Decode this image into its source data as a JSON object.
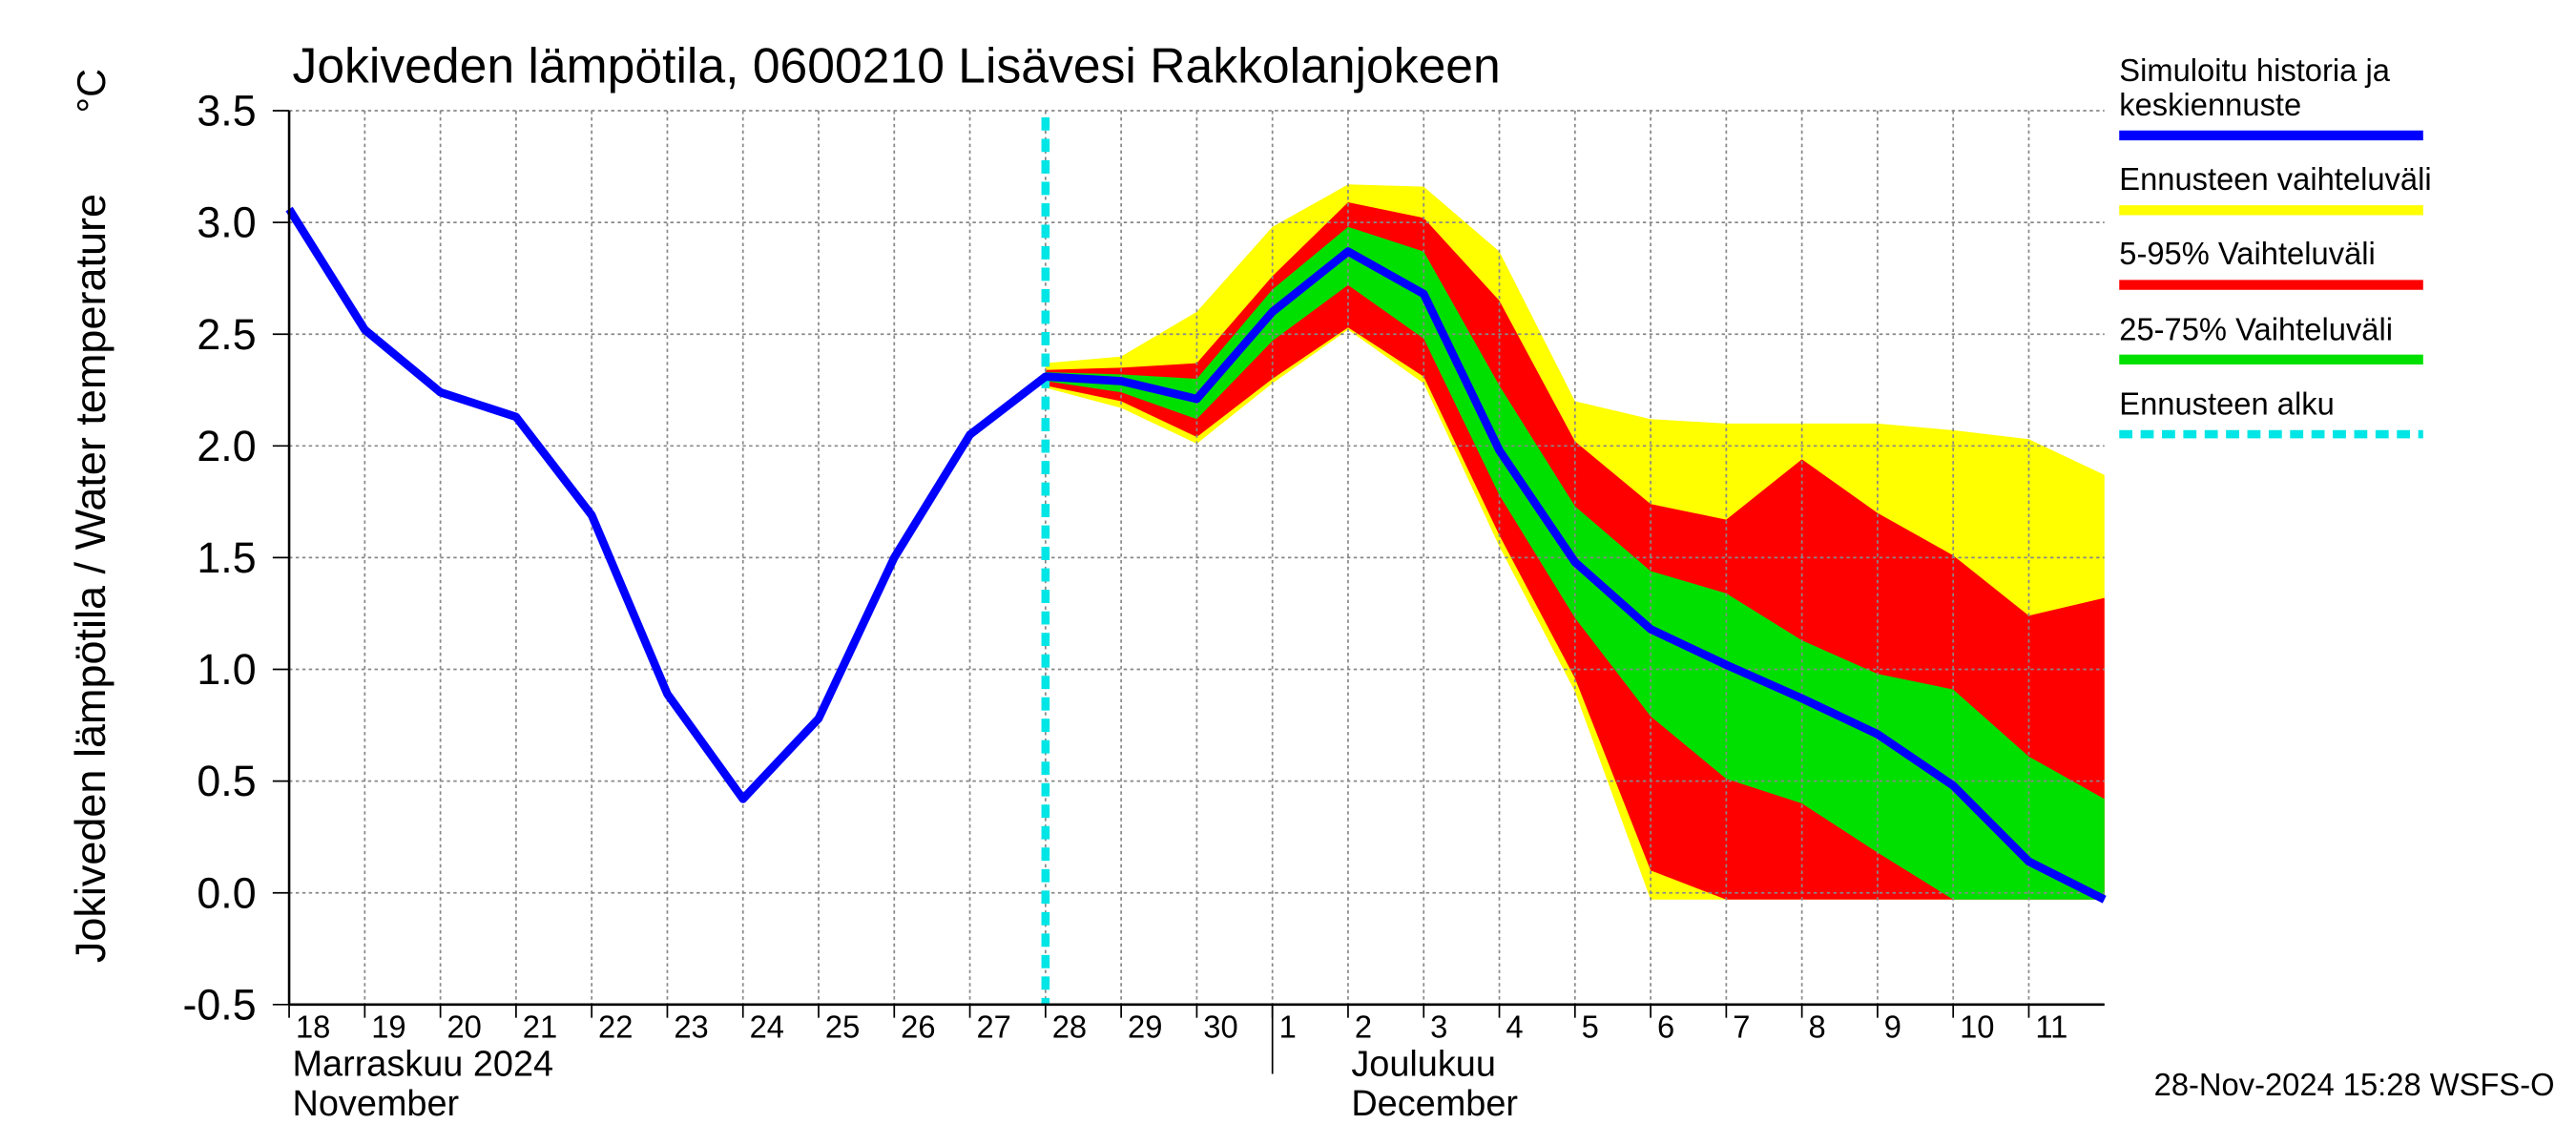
{
  "chart_data": {
    "type": "line",
    "title": "Jokiveden lämpötila, 0600210 Lisävesi Rakkolanjokeen",
    "y_label": "Jokiveden lämpötila / Water temperature",
    "y_unit": "°C",
    "footer": "28-Nov-2024 15:28 WSFS-O",
    "x": [
      "2024-11-18",
      "2024-11-19",
      "2024-11-20",
      "2024-11-21",
      "2024-11-22",
      "2024-11-23",
      "2024-11-24",
      "2024-11-25",
      "2024-11-26",
      "2024-11-27",
      "2024-11-28",
      "2024-11-29",
      "2024-11-30",
      "2024-12-01",
      "2024-12-02",
      "2024-12-03",
      "2024-12-04",
      "2024-12-05",
      "2024-12-06",
      "2024-12-07",
      "2024-12-08",
      "2024-12-09",
      "2024-12-10",
      "2024-12-11",
      "2024-12-12"
    ],
    "xlim": [
      "2024-11-18",
      "2024-12-12"
    ],
    "xticks": [
      {
        "value": "2024-11-18",
        "label": "18"
      },
      {
        "value": "2024-11-19",
        "label": "19"
      },
      {
        "value": "2024-11-20",
        "label": "20"
      },
      {
        "value": "2024-11-21",
        "label": "21"
      },
      {
        "value": "2024-11-22",
        "label": "22"
      },
      {
        "value": "2024-11-23",
        "label": "23"
      },
      {
        "value": "2024-11-24",
        "label": "24"
      },
      {
        "value": "2024-11-25",
        "label": "25"
      },
      {
        "value": "2024-11-26",
        "label": "26"
      },
      {
        "value": "2024-11-27",
        "label": "27"
      },
      {
        "value": "2024-11-28",
        "label": "28"
      },
      {
        "value": "2024-11-29",
        "label": "29"
      },
      {
        "value": "2024-11-30",
        "label": "30"
      },
      {
        "value": "2024-12-01",
        "label": "1"
      },
      {
        "value": "2024-12-02",
        "label": "2"
      },
      {
        "value": "2024-12-03",
        "label": "3"
      },
      {
        "value": "2024-12-04",
        "label": "4"
      },
      {
        "value": "2024-12-05",
        "label": "5"
      },
      {
        "value": "2024-12-06",
        "label": "6"
      },
      {
        "value": "2024-12-07",
        "label": "7"
      },
      {
        "value": "2024-12-08",
        "label": "8"
      },
      {
        "value": "2024-12-09",
        "label": "9"
      },
      {
        "value": "2024-12-10",
        "label": "10"
      },
      {
        "value": "2024-12-11",
        "label": "11"
      }
    ],
    "month_groups": [
      {
        "start": "2024-11-18",
        "label_fi": "Marraskuu 2024",
        "label_en": "November"
      },
      {
        "start": "2024-12-01",
        "label_fi": "Joulukuu",
        "label_en": "December"
      }
    ],
    "ylim": [
      -0.5,
      3.5
    ],
    "yticks": [
      -0.5,
      {
        "value": 0,
        "label": "0.0"
      },
      0.5,
      {
        "value": 1,
        "label": "1.0"
      },
      1.5,
      {
        "value": 2,
        "label": "2.0"
      },
      2.5,
      {
        "value": 3,
        "label": "3.0"
      },
      3.5
    ],
    "grid": true,
    "bands": [
      {
        "name": "Ennusteen vaihteluväli",
        "color": "#ffff00",
        "high": [
          null,
          null,
          null,
          null,
          null,
          null,
          null,
          null,
          null,
          null,
          2.37,
          2.4,
          2.6,
          2.98,
          3.17,
          3.16,
          2.87,
          2.2,
          2.12,
          2.1,
          2.1,
          2.1,
          2.07,
          2.03,
          1.87
        ],
        "low": [
          null,
          null,
          null,
          null,
          null,
          null,
          null,
          null,
          null,
          null,
          2.26,
          2.17,
          2.01,
          2.28,
          2.52,
          2.28,
          1.55,
          0.9,
          -0.03,
          -0.03,
          -0.03,
          -0.03,
          -0.03,
          -0.03,
          -0.03
        ]
      },
      {
        "name": "5-95% Vaihteluväli",
        "color": "#ff0000",
        "high": [
          null,
          null,
          null,
          null,
          null,
          null,
          null,
          null,
          null,
          null,
          2.34,
          2.35,
          2.37,
          2.76,
          3.09,
          3.02,
          2.65,
          2.02,
          1.74,
          1.67,
          1.94,
          1.7,
          1.51,
          1.24,
          1.32
        ],
        "low": [
          null,
          null,
          null,
          null,
          null,
          null,
          null,
          null,
          null,
          null,
          2.27,
          2.2,
          2.04,
          2.3,
          2.53,
          2.31,
          1.6,
          0.96,
          0.1,
          -0.03,
          -0.03,
          -0.03,
          -0.03,
          -0.03,
          -0.03
        ]
      },
      {
        "name": "25-75% Vaihteluväli",
        "color": "#00e000",
        "high": [
          null,
          null,
          null,
          null,
          null,
          null,
          null,
          null,
          null,
          null,
          2.33,
          2.32,
          2.3,
          2.7,
          2.98,
          2.87,
          2.27,
          1.73,
          1.44,
          1.34,
          1.13,
          0.98,
          0.91,
          0.61,
          0.42
        ],
        "low": [
          null,
          null,
          null,
          null,
          null,
          null,
          null,
          null,
          null,
          null,
          2.29,
          2.24,
          2.12,
          2.47,
          2.72,
          2.48,
          1.78,
          1.23,
          0.79,
          0.51,
          0.4,
          0.18,
          -0.03,
          -0.03,
          -0.03
        ]
      }
    ],
    "series": [
      {
        "name": "Simuloitu historia ja keskiennuste",
        "color": "#0000ff",
        "values": [
          3.06,
          2.52,
          2.24,
          2.13,
          1.69,
          0.89,
          0.42,
          0.78,
          1.5,
          2.05,
          2.31,
          2.29,
          2.21,
          2.6,
          2.87,
          2.68,
          1.98,
          1.48,
          1.18,
          1.02,
          0.87,
          0.71,
          0.48,
          0.14,
          -0.03
        ]
      }
    ],
    "forecast_start": {
      "name": "Ennusteen alku",
      "x": "2024-11-28",
      "color": "#00e5e5"
    }
  }
}
